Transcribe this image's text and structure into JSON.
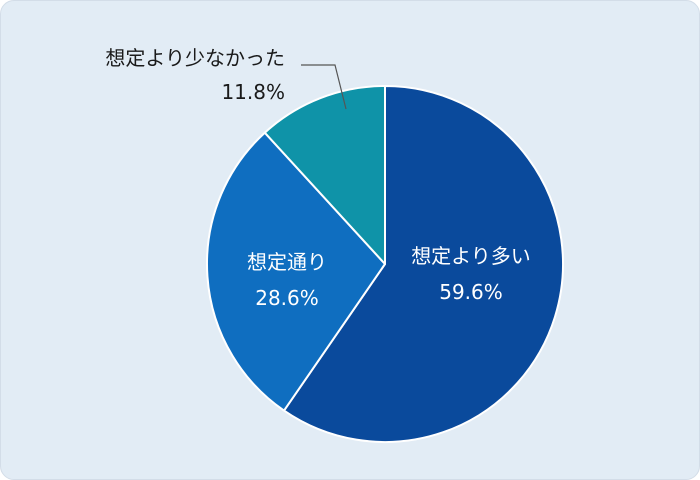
{
  "chart_data": {
    "type": "pie",
    "title": "",
    "slices": [
      {
        "label": "想定より多い",
        "value_text": "59.6%",
        "value": 59.6,
        "color": "#0a4a9c"
      },
      {
        "label": "想定通り",
        "value_text": "28.6%",
        "value": 28.6,
        "color": "#0f6ec0"
      },
      {
        "label": "想定より少なかった",
        "value_text": "11.8%",
        "value": 11.8,
        "color": "#0f93a8"
      }
    ],
    "start": "12 o'clock",
    "direction": "clockwise",
    "label_colors": {
      "inside": "#ffffff",
      "outside": "#1a1a1a"
    },
    "background": "#e2ecf5"
  }
}
